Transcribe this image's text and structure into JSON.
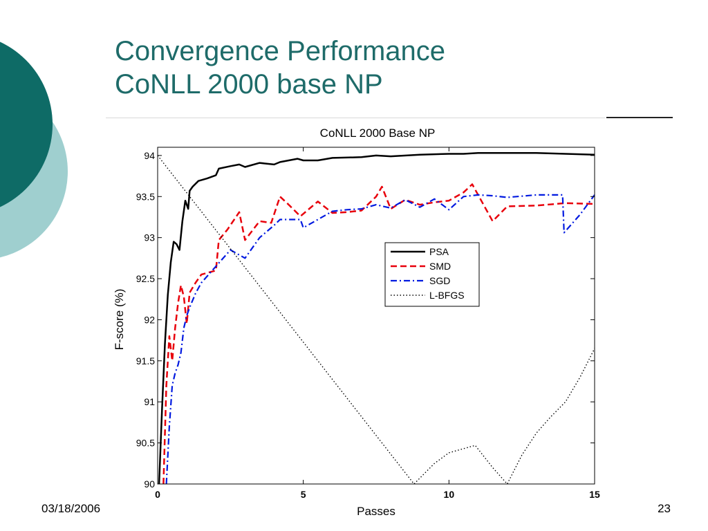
{
  "slide": {
    "title_line1": "Convergence Performance",
    "title_line2": "CoNLL 2000 base NP",
    "title_color": "#1e6b69",
    "date": "03/18/2006",
    "page_number": "23",
    "accent_dark": "#0e6b66",
    "accent_light": "#9fcfcf"
  },
  "chart_data": {
    "type": "line",
    "title": "CoNLL 2000 Base NP",
    "xlabel": "Passes",
    "ylabel": "F-score (%)",
    "xlim": [
      0,
      15
    ],
    "ylim": [
      90,
      94.1
    ],
    "xticks": [
      0,
      5,
      10,
      15
    ],
    "yticks": [
      90,
      90.5,
      91,
      91.5,
      92,
      92.5,
      93,
      93.5,
      94
    ],
    "grid": false,
    "legend_position": "center-right",
    "series": [
      {
        "name": "PSA",
        "color": "#000000",
        "style": "solid",
        "x": [
          0.05,
          0.15,
          0.25,
          0.35,
          0.45,
          0.55,
          0.65,
          0.75,
          0.85,
          0.95,
          1.05,
          1.1,
          1.2,
          1.4,
          1.7,
          2.0,
          2.1,
          2.5,
          2.8,
          3.0,
          3.5,
          4.0,
          4.2,
          4.8,
          5.0,
          5.5,
          6.0,
          7.0,
          7.5,
          8.0,
          9.0,
          10.0,
          10.5,
          11.0,
          12.0,
          13.0,
          14.0,
          15.0
        ],
        "y": [
          90.0,
          90.9,
          91.7,
          92.3,
          92.7,
          92.95,
          92.92,
          92.85,
          93.2,
          93.45,
          93.35,
          93.57,
          93.62,
          93.69,
          93.72,
          93.76,
          93.84,
          93.87,
          93.89,
          93.86,
          93.91,
          93.89,
          93.92,
          93.96,
          93.94,
          93.94,
          93.97,
          93.98,
          94.0,
          93.99,
          94.01,
          94.02,
          94.02,
          94.03,
          94.03,
          94.03,
          94.02,
          94.01
        ]
      },
      {
        "name": "SMD",
        "color": "#e8000b",
        "style": "dashed",
        "x": [
          0.2,
          0.3,
          0.4,
          0.5,
          0.6,
          0.7,
          0.8,
          0.9,
          1.0,
          1.1,
          1.3,
          1.5,
          2.0,
          2.1,
          2.4,
          2.8,
          3.0,
          3.5,
          3.9,
          4.2,
          4.5,
          4.9,
          5.5,
          6.0,
          6.5,
          7.0,
          7.5,
          7.7,
          8.0,
          8.5,
          9.0,
          9.5,
          10.0,
          10.5,
          10.8,
          11.5,
          12.0,
          13.0,
          14.0,
          15.0
        ],
        "y": [
          90.0,
          91.2,
          91.8,
          91.5,
          91.9,
          92.2,
          92.42,
          92.28,
          91.95,
          92.33,
          92.45,
          92.55,
          92.6,
          92.97,
          93.1,
          93.31,
          92.97,
          93.2,
          93.18,
          93.5,
          93.4,
          93.26,
          93.44,
          93.3,
          93.31,
          93.33,
          93.5,
          93.62,
          93.35,
          93.46,
          93.4,
          93.43,
          93.45,
          93.55,
          93.65,
          93.2,
          93.38,
          93.39,
          93.42,
          93.41
        ]
      },
      {
        "name": "SGD",
        "color": "#0019e0",
        "style": "dashdot",
        "x": [
          0.3,
          0.4,
          0.5,
          0.6,
          0.7,
          0.8,
          0.9,
          1.0,
          1.1,
          1.3,
          1.5,
          2.0,
          2.5,
          3.0,
          3.5,
          4.0,
          4.2,
          4.9,
          5.0,
          5.5,
          6.0,
          6.5,
          7.0,
          7.5,
          8.0,
          8.5,
          9.0,
          9.5,
          10.0,
          10.5,
          11.0,
          11.5,
          12.0,
          13.0,
          13.9,
          13.95,
          14.5,
          15.0
        ],
        "y": [
          90.0,
          90.7,
          91.2,
          91.35,
          91.45,
          91.6,
          91.9,
          92.05,
          92.15,
          92.32,
          92.45,
          92.65,
          92.85,
          92.75,
          93.0,
          93.15,
          93.22,
          93.22,
          93.12,
          93.22,
          93.32,
          93.34,
          93.35,
          93.4,
          93.36,
          93.46,
          93.37,
          93.47,
          93.34,
          93.5,
          93.52,
          93.51,
          93.49,
          93.52,
          93.52,
          93.06,
          93.28,
          93.52
        ]
      },
      {
        "name": "L-BFGS",
        "color": "#000000",
        "style": "dotted",
        "x": [
          0,
          8.8,
          9.5,
          10.0,
          10.5,
          10.9,
          11.5,
          12.0,
          12.5,
          13.0,
          13.5,
          14.0,
          14.5,
          15.0
        ],
        "y": [
          94.0,
          90.0,
          90.25,
          90.38,
          90.43,
          90.47,
          90.2,
          90.0,
          90.35,
          90.62,
          90.82,
          91.0,
          91.3,
          91.65
        ]
      }
    ]
  }
}
